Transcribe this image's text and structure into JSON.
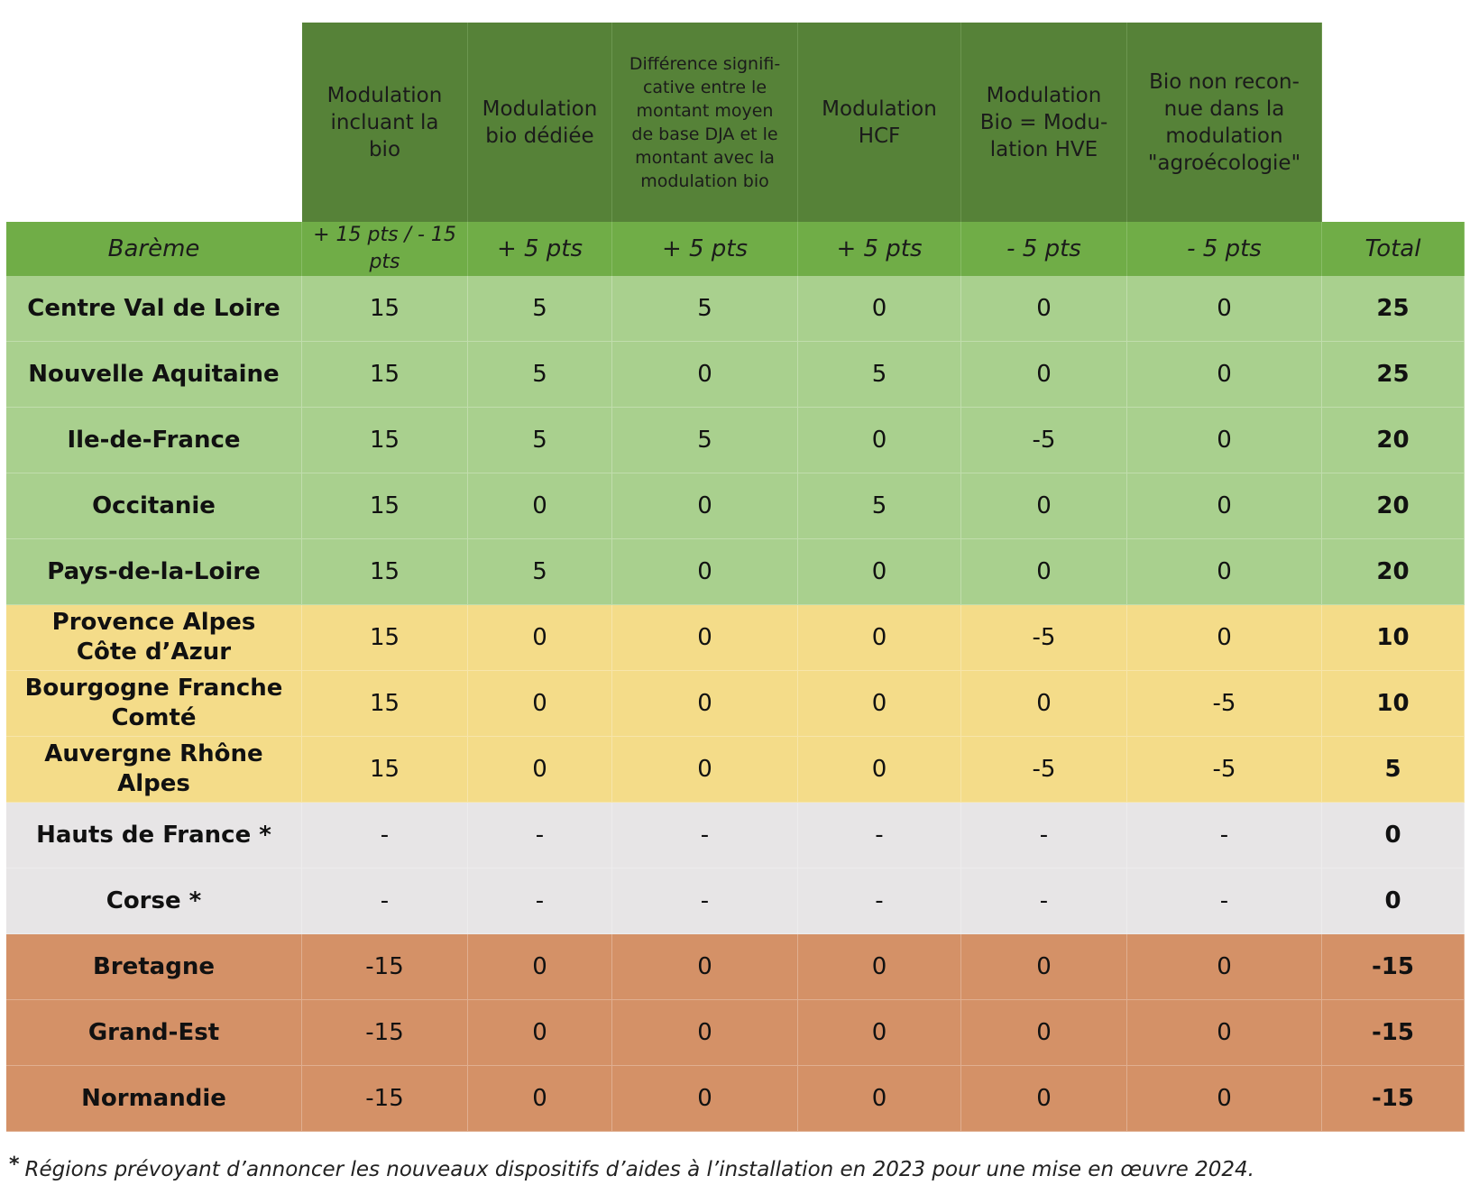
{
  "header": {
    "columns": [
      "Modulation incluant la bio",
      "Modulation bio dédiée",
      "Différence significative entre le montant moyen de base DJA et le montant avec la modulation bio",
      "Modulation HCF",
      "Modulation Bio = Modulation HVE",
      "Bio non reconnue dans la modulation \"agroécologie\""
    ],
    "columns_display": [
      [
        "Modulation",
        "incluant la",
        "bio"
      ],
      [
        "Modulation",
        "bio dédiée"
      ],
      [
        "Différence signifi-",
        "cative entre le",
        "montant moyen",
        "de base DJA et le",
        "montant avec la",
        "modulation bio"
      ],
      [
        "Modulation",
        "HCF"
      ],
      [
        "Modulation",
        "Bio = Modu-",
        "lation HVE"
      ],
      [
        "Bio non recon-",
        "nue dans la",
        "modulation",
        "\"agroécologie\""
      ]
    ]
  },
  "scale": {
    "label": "Barème",
    "values": [
      "+ 15 pts / - 15 pts",
      "+ 5 pts",
      "+ 5 pts",
      "+ 5 pts",
      "- 5 pts",
      "- 5 pts"
    ],
    "total_label": "Total"
  },
  "colors": {
    "header_dark": "#568238",
    "scale_green": "#70ad47",
    "positive": "#a9d08e",
    "mid": "#f4dc89",
    "neutral": "#e7e5e6",
    "negative": "#d49167"
  },
  "rows": [
    {
      "region": [
        "Centre Val de Loire"
      ],
      "values": [
        "15",
        "5",
        "5",
        "0",
        "0",
        "0"
      ],
      "total": "25",
      "group": "positive"
    },
    {
      "region": [
        "Nouvelle Aquitaine"
      ],
      "values": [
        "15",
        "5",
        "0",
        "5",
        "0",
        "0"
      ],
      "total": "25",
      "group": "positive"
    },
    {
      "region": [
        "Ile-de-France"
      ],
      "values": [
        "15",
        "5",
        "5",
        "0",
        "-5",
        "0"
      ],
      "total": "20",
      "group": "positive"
    },
    {
      "region": [
        "Occitanie"
      ],
      "values": [
        "15",
        "0",
        "0",
        "5",
        "0",
        "0"
      ],
      "total": "20",
      "group": "positive"
    },
    {
      "region": [
        "Pays-de-la-Loire"
      ],
      "values": [
        "15",
        "5",
        "0",
        "0",
        "0",
        "0"
      ],
      "total": "20",
      "group": "positive"
    },
    {
      "region": [
        "Provence Alpes",
        "Côte d’Azur"
      ],
      "values": [
        "15",
        "0",
        "0",
        "0",
        "-5",
        "0"
      ],
      "total": "10",
      "group": "mid"
    },
    {
      "region": [
        "Bourgogne Franche",
        "Comté"
      ],
      "values": [
        "15",
        "0",
        "0",
        "0",
        "0",
        "-5"
      ],
      "total": "10",
      "group": "mid"
    },
    {
      "region": [
        "Auvergne Rhône",
        "Alpes"
      ],
      "values": [
        "15",
        "0",
        "0",
        "0",
        "-5",
        "-5"
      ],
      "total": "5",
      "group": "mid"
    },
    {
      "region": [
        "Hauts de France *"
      ],
      "values": [
        "-",
        "-",
        "-",
        "-",
        "-",
        "-"
      ],
      "total": "0",
      "group": "neutral"
    },
    {
      "region": [
        "Corse *"
      ],
      "values": [
        "-",
        "-",
        "-",
        "-",
        "-",
        "-"
      ],
      "total": "0",
      "group": "neutral"
    },
    {
      "region": [
        "Bretagne"
      ],
      "values": [
        "-15",
        "0",
        "0",
        "0",
        "0",
        "0"
      ],
      "total": "-15",
      "group": "negative"
    },
    {
      "region": [
        "Grand-Est"
      ],
      "values": [
        "-15",
        "0",
        "0",
        "0",
        "0",
        "0"
      ],
      "total": "-15",
      "group": "negative"
    },
    {
      "region": [
        "Normandie"
      ],
      "values": [
        "-15",
        "0",
        "0",
        "0",
        "0",
        "0"
      ],
      "total": "-15",
      "group": "negative"
    }
  ],
  "footnote": {
    "marker": "*",
    "text": "Régions prévoyant d’annoncer les nouveaux dispositifs d’aides à l’installation en 2023 pour une mise en œuvre 2024."
  }
}
